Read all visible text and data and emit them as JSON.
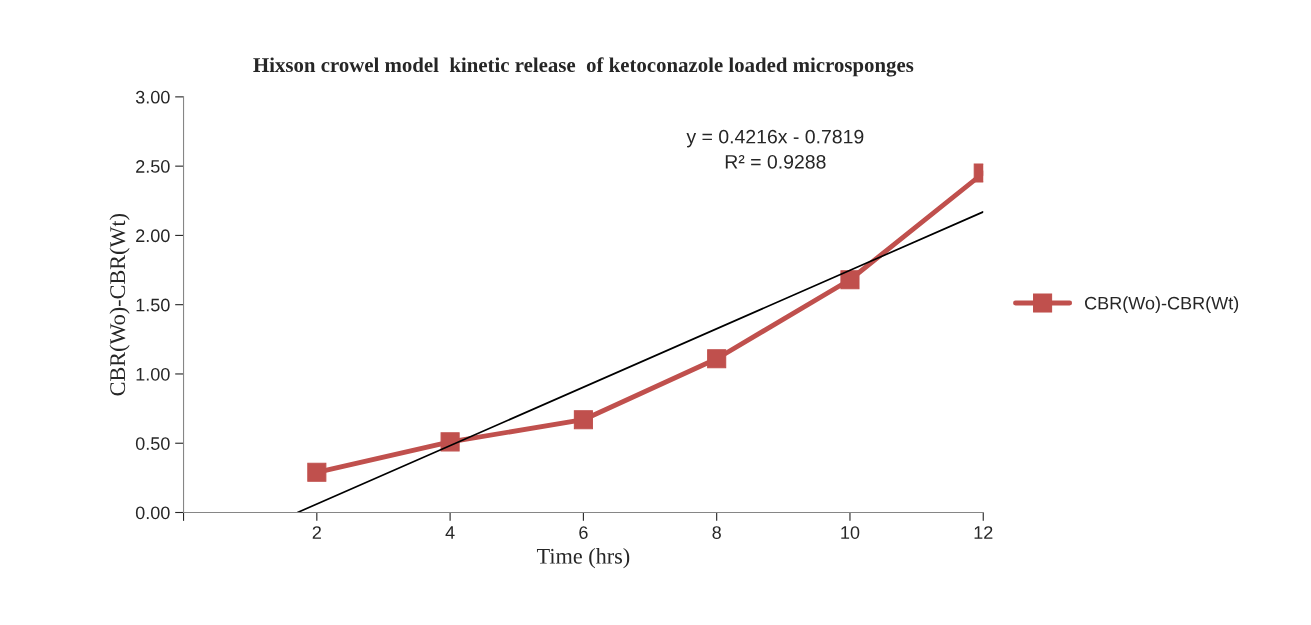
{
  "chart_data": {
    "type": "line",
    "title": "Hixson crowel model  kinetic release  of ketoconazole loaded microsponges",
    "xlabel": "Time (hrs)",
    "ylabel": "CBR(Wo)-CBR(Wt)",
    "x": [
      2,
      4,
      6,
      8,
      10,
      12
    ],
    "series": [
      {
        "name": "CBR(Wo)-CBR(Wt)",
        "color": "#c0504d",
        "values": [
          0.29,
          0.51,
          0.67,
          1.11,
          1.68,
          2.45
        ],
        "marker": "square",
        "line_style": "solid"
      },
      {
        "type": "line",
        "color": "#000000",
        "x": [
          1.71,
          12
        ],
        "values": [
          0,
          2.17
        ],
        "marker": "none",
        "line_style": "solid"
      }
    ],
    "xlim": [
      0,
      12
    ],
    "xticks": [
      {
        "value": 0,
        "label": null
      },
      2,
      4,
      6,
      8,
      10,
      12
    ],
    "ylim": [
      0,
      3
    ],
    "yticks": [
      {
        "value": 0,
        "label": "0.00"
      },
      {
        "value": 0.5,
        "label": "0.50"
      },
      {
        "value": 1,
        "label": "1.00"
      },
      {
        "value": 1.5,
        "label": "1.50"
      },
      {
        "value": 2,
        "label": "2.00"
      },
      {
        "value": 2.5,
        "label": "2.50"
      },
      {
        "value": 3,
        "label": "3.00"
      }
    ],
    "annotations": [
      "y = 0.4216x - 0.7819\nR² = 0.9288"
    ],
    "grid": false,
    "legend": "right"
  }
}
